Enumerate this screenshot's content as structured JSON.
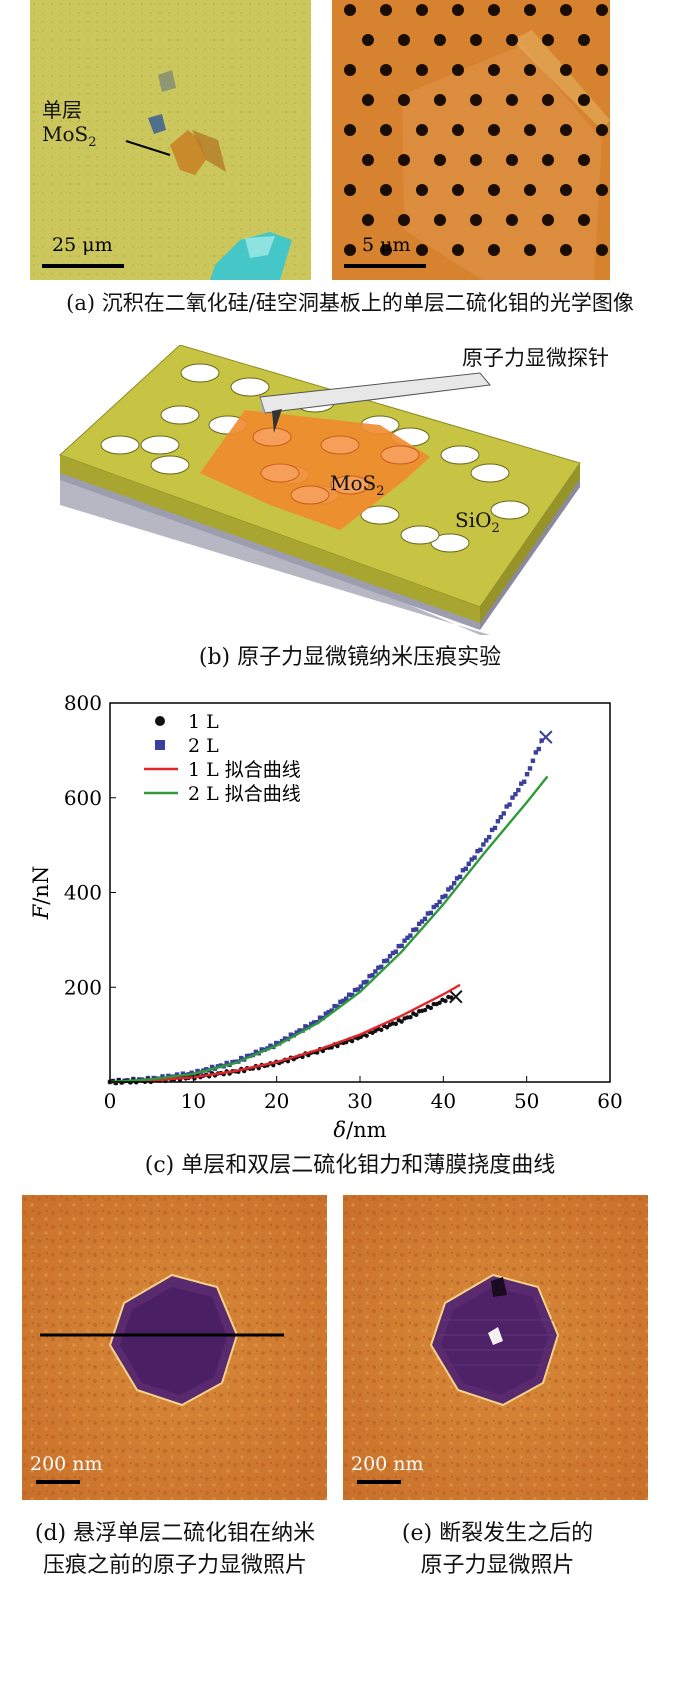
{
  "panel_a": {
    "left": {
      "label_line1": "单层",
      "label_line2_base": "MoS",
      "label_line2_sub": "2",
      "scale": "25 μm"
    },
    "right": {
      "scale": "5 μm"
    },
    "caption": "(a) 沉积在二氧化硅/硅空洞基板上的单层二硫化钼的光学图像"
  },
  "panel_b": {
    "tip_label": "原子力显微探针",
    "mos2_base": "MoS",
    "mos2_sub": "2",
    "sio2_base": "SiO",
    "sio2_sub": "2",
    "caption": "(b) 原子力显微镜纳米压痕实验"
  },
  "chart_data": {
    "type": "scatter",
    "xlabel_italic": "δ",
    "xlabel_unit": "/nm",
    "ylabel_italic": "F",
    "ylabel_unit": "/nN",
    "xlim": [
      0,
      60
    ],
    "ylim": [
      0,
      800
    ],
    "x_ticks": [
      "0",
      "10",
      "20",
      "30",
      "40",
      "50",
      "60"
    ],
    "y_ticks": [
      "200",
      "400",
      "600",
      "800"
    ],
    "legend": [
      {
        "name": "1 L",
        "marker": "circle",
        "color": "#111111"
      },
      {
        "name": "2 L",
        "marker": "square",
        "color": "#3a3f9c"
      },
      {
        "name": "1 L 拟合曲线",
        "marker": "line",
        "color": "#e0262b"
      },
      {
        "name": "2 L 拟合曲线",
        "marker": "line",
        "color": "#2e9a3a"
      }
    ],
    "series": [
      {
        "name": "1 L",
        "x": [
          0,
          5,
          10,
          15,
          20,
          25,
          30,
          35,
          38,
          40,
          41
        ],
        "y": [
          0,
          3,
          10,
          22,
          40,
          65,
          95,
          130,
          155,
          172,
          180
        ],
        "break": {
          "x": 41.5,
          "y": 180
        }
      },
      {
        "name": "2 L",
        "x": [
          0,
          5,
          10,
          15,
          20,
          25,
          30,
          35,
          40,
          45,
          48,
          50,
          51,
          52
        ],
        "y": [
          0,
          6,
          18,
          42,
          80,
          130,
          200,
          290,
          390,
          505,
          590,
          645,
          690,
          725
        ],
        "break": {
          "x": 52.3,
          "y": 728
        }
      },
      {
        "name": "1 L 拟合曲线",
        "x": [
          0,
          5,
          10,
          15,
          20,
          25,
          30,
          35,
          40,
          42
        ],
        "y": [
          0,
          3,
          10,
          23,
          42,
          68,
          100,
          140,
          185,
          205
        ]
      },
      {
        "name": "2 L 拟合曲线",
        "x": [
          0,
          5,
          10,
          15,
          20,
          25,
          30,
          35,
          40,
          45,
          50,
          52.5
        ],
        "y": [
          0,
          6,
          17,
          40,
          77,
          125,
          190,
          275,
          375,
          485,
          590,
          645
        ]
      }
    ],
    "caption": "(c) 单层和双层二硫化钼力和薄膜挠度曲线"
  },
  "panel_d": {
    "scale": "200 nm",
    "caption_line1": "(d) 悬浮单层二硫化钼在纳米",
    "caption_line2": "压痕之前的原子力显微照片"
  },
  "panel_e": {
    "scale": "200 nm",
    "caption_line1": "(e) 断裂发生之后的",
    "caption_line2": "原子力显微照片"
  }
}
